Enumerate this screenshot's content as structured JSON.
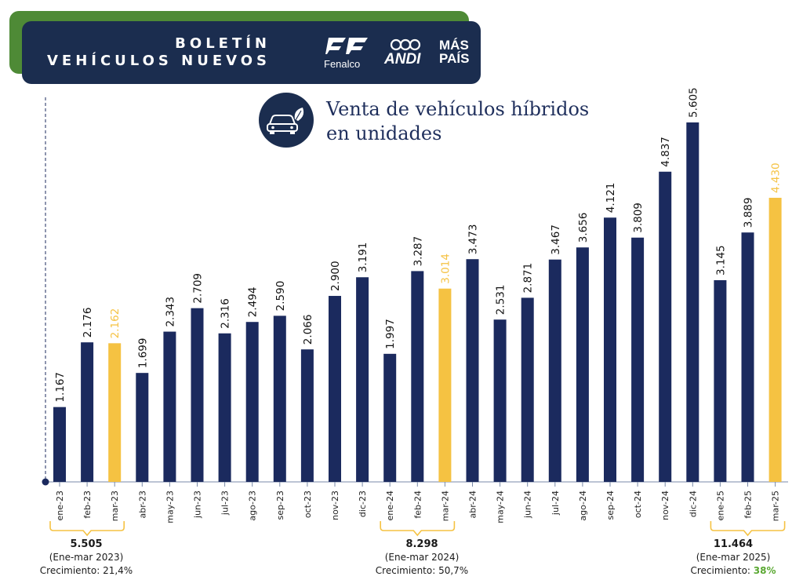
{
  "header": {
    "title_line1": "BOLETÍN",
    "title_line2": "VEHÍCULOS NUEVOS",
    "logo_fenalco": "Fenalco",
    "logo_andi": "ANDI",
    "logo_mas": "MÁS",
    "logo_pais": "PAÍS"
  },
  "subtitle": {
    "line1": "Venta de vehículos híbridos",
    "line2": "en unidades"
  },
  "colors": {
    "navy": "#1b2d4f",
    "bar": "#1b2a5e",
    "highlight": "#f5c242",
    "green": "#4e8a36",
    "growth": "#5aa832"
  },
  "chart_data": {
    "type": "bar",
    "title": "Venta de vehículos híbridos en unidades",
    "xlabel": "",
    "ylabel": "",
    "ylim": [
      0,
      6000
    ],
    "grid": false,
    "categories": [
      "ene-23",
      "feb-23",
      "mar-23",
      "abr-23",
      "may-23",
      "jun-23",
      "jul-23",
      "ago-23",
      "sep-23",
      "oct-23",
      "nov-23",
      "dic-23",
      "ene-24",
      "feb-24",
      "mar-24",
      "abr-24",
      "may-24",
      "jun-24",
      "jul-24",
      "ago-24",
      "sep-24",
      "oct-24",
      "nov-24",
      "dic-24",
      "ene-25",
      "feb-25",
      "mar-25"
    ],
    "values": [
      1167,
      2176,
      2162,
      1699,
      2343,
      2709,
      2316,
      2494,
      2590,
      2066,
      2900,
      3191,
      1997,
      3287,
      3014,
      3473,
      2531,
      2871,
      3467,
      3656,
      4121,
      3809,
      4837,
      5605,
      3145,
      3889,
      4430
    ],
    "value_labels": [
      "1.167",
      "2.176",
      "2.162",
      "1.699",
      "2.343",
      "2.709",
      "2.316",
      "2.494",
      "2.590",
      "2.066",
      "2.900",
      "3.191",
      "1.997",
      "3.287",
      "3.014",
      "3.473",
      "2.531",
      "2.871",
      "3.467",
      "3.656",
      "4.121",
      "3.809",
      "4.837",
      "5.605",
      "3.145",
      "3.889",
      "4.430"
    ],
    "highlighted": [
      "mar-23",
      "mar-24",
      "mar-25"
    ]
  },
  "summaries": [
    {
      "total": "5.505",
      "period": "(Ene-mar 2023)",
      "growth_label": "Crecimiento: 21,4%",
      "growth_prefix": "",
      "growth_value": ""
    },
    {
      "total": "8.298",
      "period": "(Ene-mar 2024)",
      "growth_label": "Crecimiento: 50,7%",
      "growth_prefix": "",
      "growth_value": ""
    },
    {
      "total": "11.464",
      "period": "(Ene-mar 2025)",
      "growth_label": "",
      "growth_prefix": "Crecimiento: ",
      "growth_value": "38%"
    }
  ]
}
